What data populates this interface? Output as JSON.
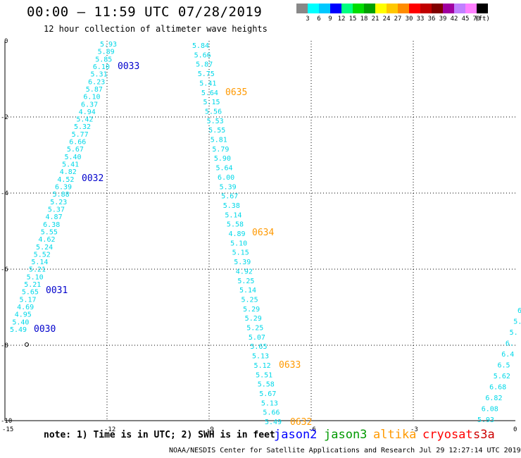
{
  "header": {
    "title": "00:00 – 11:59 UTC 07/28/2019",
    "subtitle": "12 hour collection of altimeter wave heights"
  },
  "scale": {
    "colors": [
      "#888888",
      "#00ffff",
      "#00c8ff",
      "#0000ff",
      "#00ff80",
      "#00dd00",
      "#00a000",
      "#ffff00",
      "#ffc800",
      "#ff8c00",
      "#ff0000",
      "#c00000",
      "#800000",
      "#a000a0",
      "#c080ff",
      "#ff80ff",
      "#000000"
    ],
    "labels": [
      "3",
      "6",
      "9",
      "12",
      "15",
      "18",
      "21",
      "24",
      "27",
      "30",
      "33",
      "36",
      "39",
      "42",
      "45",
      "70",
      "(ft)"
    ]
  },
  "axes": {
    "x_ticks": [
      "-15",
      "-12",
      "-9",
      "-6",
      "-3",
      "0"
    ],
    "y_ticks": [
      "0",
      "-2",
      "-4",
      "-6",
      "-8",
      "-10"
    ]
  },
  "tracks": [
    {
      "color": "#00d8e8",
      "values": [
        "5.93",
        "5.89",
        "5.85",
        "6.10",
        "5.31",
        "6.23",
        "5.87",
        "6.10",
        "6.37",
        "4.94",
        "5.42",
        "5.32",
        "5.77",
        "6.66",
        "5.67",
        "5.40",
        "5.41",
        "4.82",
        "4.52",
        "6.39",
        "5.88",
        "5.23",
        "5.37",
        "4.87",
        "6.38",
        "5.55",
        "4.62",
        "5.24",
        "5.52",
        "5.14",
        "5.21",
        "5.10",
        "5.21",
        "5.65",
        "5.17",
        "4.69",
        "4.95",
        "5.40",
        "5.49"
      ]
    },
    {
      "color": "#00d8e8",
      "values": [
        "5.84",
        "5.66",
        "5.87",
        "5.75",
        "5.41",
        "5.64",
        "5.15",
        "5.56",
        "5.53",
        "5.55",
        "5.81",
        "5.79",
        "5.90",
        "5.64",
        "6.00",
        "5.39",
        "5.67",
        "5.38",
        "5.14",
        "5.58",
        "4.89",
        "5.10",
        "5.15",
        "5.39",
        "4.92",
        "5.25",
        "5.14",
        "5.25",
        "5.29",
        "5.29",
        "5.25",
        "5.07",
        "5.65",
        "5.13",
        "5.12",
        "5.51",
        "5.58",
        "5.67",
        "5.13",
        "5.66",
        "5.49"
      ]
    },
    {
      "color": "#00d8e8",
      "values": [
        "6",
        "5.",
        "5.",
        "6.",
        "6.4",
        "6.5",
        "5.62",
        "6.68",
        "6.82",
        "6.08",
        "5.93"
      ]
    }
  ],
  "pass_labels": [
    {
      "text": "0033",
      "color": "#0000cc"
    },
    {
      "text": "0032",
      "color": "#0000cc"
    },
    {
      "text": "0031",
      "color": "#0000cc"
    },
    {
      "text": "0030",
      "color": "#0000cc"
    },
    {
      "text": "0635",
      "color": "#ff9900"
    },
    {
      "text": "0634",
      "color": "#ff9900"
    },
    {
      "text": "0633",
      "color": "#ff9900"
    },
    {
      "text": "0632",
      "color": "#ff9900"
    }
  ],
  "footer": {
    "note": "note: 1) Time is in UTC; 2) SWH is in feet",
    "satellites": [
      {
        "name": "jason2",
        "color": "#0000ff"
      },
      {
        "name": "jason3",
        "color": "#009900"
      },
      {
        "name": "altika",
        "color": "#ff9900"
      },
      {
        "name": "cryosat",
        "color": "#ff0000"
      },
      {
        "name": "s3a",
        "color": "#cc0000"
      }
    ],
    "credit": "NOAA/NESDIS Center for Satellite Applications and Research    Jul 29 12:27:14 UTC 2019"
  }
}
